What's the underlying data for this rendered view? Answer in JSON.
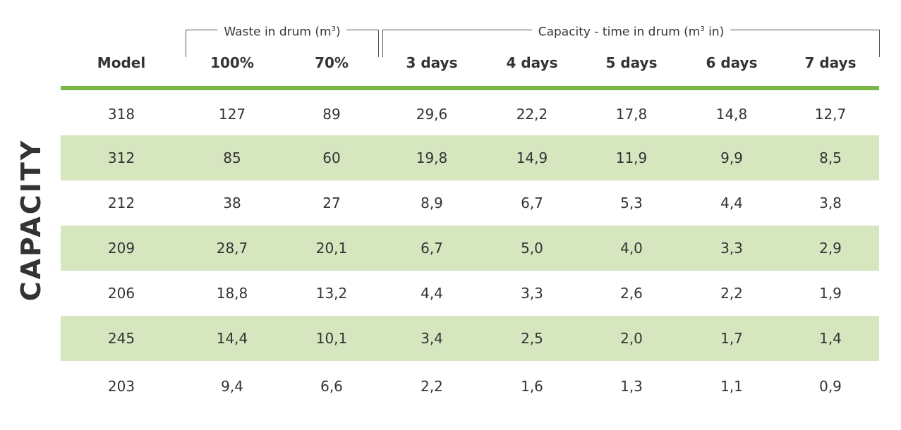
{
  "side_title": "CAPACITY",
  "groups": {
    "waste": {
      "label": "Waste in drum (m",
      "sup": "3",
      "suffix": ")"
    },
    "capacity": {
      "label": "Capacity - time in drum (m",
      "sup": "3",
      "suffix": " in)"
    }
  },
  "headers": [
    "Model",
    "100%",
    "70%",
    "3 days",
    "4 days",
    "5 days",
    "6 days",
    "7 days"
  ],
  "rows": [
    [
      "318",
      "127",
      "89",
      "29,6",
      "22,2",
      "17,8",
      "14,8",
      "12,7"
    ],
    [
      "312",
      "85",
      "60",
      "19,8",
      "14,9",
      "11,9",
      "9,9",
      "8,5"
    ],
    [
      "212",
      "38",
      "27",
      "8,9",
      "6,7",
      "5,3",
      "4,4",
      "3,8"
    ],
    [
      "209",
      "28,7",
      "20,1",
      "6,7",
      "5,0",
      "4,0",
      "3,3",
      "2,9"
    ],
    [
      "206",
      "18,8",
      "13,2",
      "4,4",
      "3,3",
      "2,6",
      "2,2",
      "1,9"
    ],
    [
      "245",
      "14,4",
      "10,1",
      "3,4",
      "2,5",
      "2,0",
      "1,7",
      "1,4"
    ],
    [
      "203",
      "9,4",
      "6,6",
      "2,2",
      "1,6",
      "1,3",
      "1,1",
      "0,9"
    ]
  ],
  "colors": {
    "accent_green": "#7ab648",
    "row_shade": "#d6e6bf",
    "text": "#333333"
  }
}
